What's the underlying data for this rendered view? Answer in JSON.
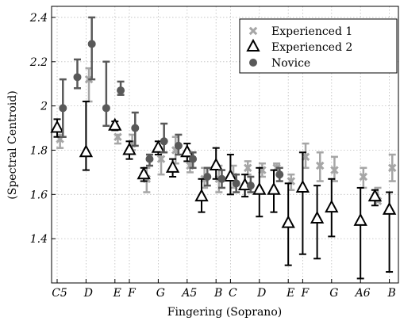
{
  "chart_data": {
    "type": "scatter",
    "xlabel": "Fingering (Soprano)",
    "ylabel": "(Spectral Centroid)",
    "ylim": [
      1.2,
      2.45
    ],
    "yticks": [
      1.4,
      1.6,
      1.8,
      2,
      2.2,
      2.4
    ],
    "ytick_labels": [
      "1.4",
      "1.6",
      "1.8",
      "2",
      "2.2",
      "2.4"
    ],
    "x_tick_labels": [
      "C5",
      "D",
      "E",
      "F",
      "G",
      "A5",
      "B",
      "C",
      "D",
      "E",
      "F",
      "G",
      "A6",
      "B"
    ],
    "x_tick_positions": [
      0,
      2,
      4,
      5,
      7,
      9,
      11,
      12,
      14,
      16,
      17,
      19,
      21,
      23
    ],
    "grid": true,
    "legend_position": "top-right",
    "series": [
      {
        "name": "Experienced 1",
        "marker": "x",
        "color": "#a6a6a6",
        "points": [
          {
            "x": 0.2,
            "y": 1.85,
            "lo": 1.81,
            "hi": 1.87
          },
          {
            "x": 2.2,
            "y": 2.12,
            "lo": 2.02,
            "hi": 2.17
          },
          {
            "x": 4.2,
            "y": 1.86,
            "lo": 1.83,
            "hi": 1.87
          },
          {
            "x": 5.2,
            "y": 1.83,
            "lo": 1.8,
            "hi": 1.87
          },
          {
            "x": 6.2,
            "y": 1.67,
            "lo": 1.61,
            "hi": 1.72
          },
          {
            "x": 7.2,
            "y": 1.76,
            "lo": 1.69,
            "hi": 1.8
          },
          {
            "x": 8.2,
            "y": 1.8,
            "lo": 1.74,
            "hi": 1.86
          },
          {
            "x": 9.2,
            "y": 1.73,
            "lo": 1.7,
            "hi": 1.77
          },
          {
            "x": 10.2,
            "y": 1.67,
            "lo": 1.63,
            "hi": 1.72
          },
          {
            "x": 11.2,
            "y": 1.67,
            "lo": 1.61,
            "hi": 1.73
          },
          {
            "x": 12.2,
            "y": 1.68,
            "lo": 1.63,
            "hi": 1.73
          },
          {
            "x": 13.2,
            "y": 1.72,
            "lo": 1.69,
            "hi": 1.75
          },
          {
            "x": 14.2,
            "y": 1.71,
            "lo": 1.68,
            "hi": 1.74
          },
          {
            "x": 15.2,
            "y": 1.72,
            "lo": 1.71,
            "hi": 1.74
          },
          {
            "x": 16.2,
            "y": 1.66,
            "lo": 1.62,
            "hi": 1.69
          },
          {
            "x": 17.2,
            "y": 1.77,
            "lo": 1.72,
            "hi": 1.83
          },
          {
            "x": 18.2,
            "y": 1.73,
            "lo": 1.66,
            "hi": 1.79
          },
          {
            "x": 19.2,
            "y": 1.71,
            "lo": 1.66,
            "hi": 1.77
          },
          {
            "x": 21.2,
            "y": 1.68,
            "lo": 1.63,
            "hi": 1.72
          },
          {
            "x": 22.2,
            "y": 1.57,
            "lo": 1.57,
            "hi": 1.63
          },
          {
            "x": 23.2,
            "y": 1.72,
            "lo": 1.66,
            "hi": 1.78
          }
        ]
      },
      {
        "name": "Experienced 2",
        "marker": "triangle",
        "color": "#000000",
        "points": [
          {
            "x": 0,
            "y": 1.9,
            "lo": 1.86,
            "hi": 1.94
          },
          {
            "x": 2,
            "y": 1.79,
            "lo": 1.71,
            "hi": 2.02
          },
          {
            "x": 4,
            "y": 1.91,
            "lo": 1.89,
            "hi": 1.93
          },
          {
            "x": 5,
            "y": 1.8,
            "lo": 1.76,
            "hi": 1.84
          },
          {
            "x": 6,
            "y": 1.69,
            "lo": 1.66,
            "hi": 1.72
          },
          {
            "x": 7,
            "y": 1.81,
            "lo": 1.78,
            "hi": 1.84
          },
          {
            "x": 8,
            "y": 1.72,
            "lo": 1.68,
            "hi": 1.76
          },
          {
            "x": 9,
            "y": 1.79,
            "lo": 1.75,
            "hi": 1.83
          },
          {
            "x": 10,
            "y": 1.59,
            "lo": 1.52,
            "hi": 1.67
          },
          {
            "x": 11,
            "y": 1.73,
            "lo": 1.67,
            "hi": 1.81
          },
          {
            "x": 12,
            "y": 1.68,
            "lo": 1.6,
            "hi": 1.78
          },
          {
            "x": 13,
            "y": 1.64,
            "lo": 1.59,
            "hi": 1.69
          },
          {
            "x": 14,
            "y": 1.62,
            "lo": 1.5,
            "hi": 1.72
          },
          {
            "x": 15,
            "y": 1.62,
            "lo": 1.52,
            "hi": 1.71
          },
          {
            "x": 16,
            "y": 1.47,
            "lo": 1.28,
            "hi": 1.65
          },
          {
            "x": 17,
            "y": 1.63,
            "lo": 1.33,
            "hi": 1.79
          },
          {
            "x": 18,
            "y": 1.49,
            "lo": 1.31,
            "hi": 1.64
          },
          {
            "x": 19,
            "y": 1.54,
            "lo": 1.41,
            "hi": 1.67
          },
          {
            "x": 21,
            "y": 1.48,
            "lo": 1.22,
            "hi": 1.63
          },
          {
            "x": 22,
            "y": 1.59,
            "lo": 1.55,
            "hi": 1.62
          },
          {
            "x": 23,
            "y": 1.53,
            "lo": 1.25,
            "hi": 1.61
          }
        ]
      },
      {
        "name": "Novice",
        "marker": "circle",
        "color": "#595959",
        "points": [
          {
            "x": 0.4,
            "y": 1.99,
            "lo": 1.86,
            "hi": 2.12
          },
          {
            "x": 1.4,
            "y": 2.13,
            "lo": 2.08,
            "hi": 2.21
          },
          {
            "x": 2.4,
            "y": 2.28,
            "lo": 2.12,
            "hi": 2.4
          },
          {
            "x": 3.4,
            "y": 1.99,
            "lo": 1.91,
            "hi": 2.2
          },
          {
            "x": 4.4,
            "y": 2.07,
            "lo": 2.05,
            "hi": 2.11
          },
          {
            "x": 5.4,
            "y": 1.9,
            "lo": 1.82,
            "hi": 1.97
          },
          {
            "x": 6.4,
            "y": 1.76,
            "lo": 1.73,
            "hi": 1.78
          },
          {
            "x": 7.4,
            "y": 1.84,
            "lo": 1.79,
            "hi": 1.92
          },
          {
            "x": 8.4,
            "y": 1.82,
            "lo": 1.78,
            "hi": 1.87
          },
          {
            "x": 9.4,
            "y": 1.76,
            "lo": 1.72,
            "hi": 1.79
          },
          {
            "x": 10.4,
            "y": 1.68,
            "lo": 1.64,
            "hi": 1.72
          },
          {
            "x": 11.4,
            "y": 1.67,
            "lo": 1.63,
            "hi": 1.71
          },
          {
            "x": 12.4,
            "y": 1.65,
            "lo": 1.61,
            "hi": 1.69
          },
          {
            "x": 13.4,
            "y": 1.64,
            "lo": 1.61,
            "hi": 1.68
          },
          {
            "x": 15.4,
            "y": 1.69,
            "lo": 1.66,
            "hi": 1.72
          }
        ]
      }
    ]
  }
}
